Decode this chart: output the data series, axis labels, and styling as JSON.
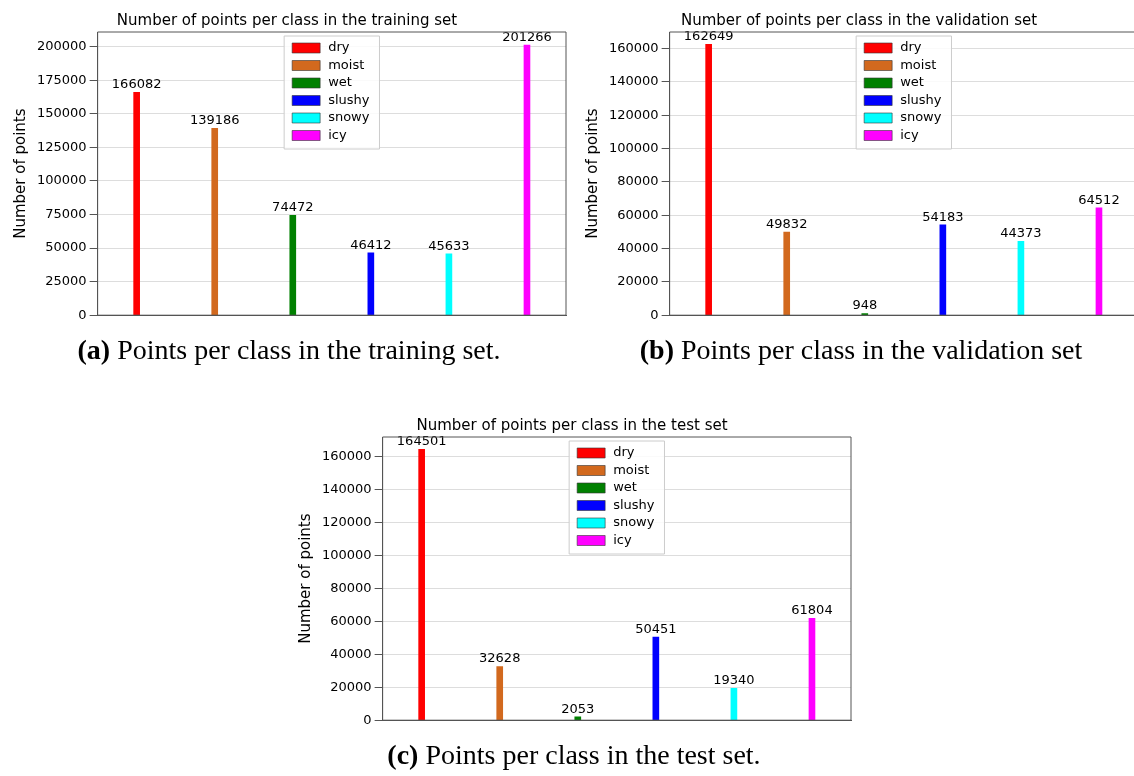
{
  "chart_data": [
    {
      "type": "bar",
      "title": "Number of points per class in the training set",
      "annotations": [
        "(a) Points per class in the training set."
      ],
      "ylabel": "Number of points",
      "categories": [
        null,
        null,
        null,
        null,
        null,
        null
      ],
      "series": [
        {
          "name": "dry",
          "color": "#ff0000",
          "values": [
            166082,
            null,
            null,
            null,
            null,
            null
          ]
        },
        {
          "name": "moist",
          "color": "#d2691e",
          "values": [
            null,
            139186,
            null,
            null,
            null,
            null
          ]
        },
        {
          "name": "wet",
          "color": "#008000",
          "values": [
            null,
            null,
            74472,
            null,
            null,
            null
          ]
        },
        {
          "name": "slushy",
          "color": "#0000ff",
          "values": [
            null,
            null,
            null,
            46412,
            null,
            null
          ]
        },
        {
          "name": "snowy",
          "color": "#00ffff",
          "values": [
            null,
            null,
            null,
            null,
            45633,
            null
          ]
        },
        {
          "name": "icy",
          "color": "#ff00ff",
          "values": [
            null,
            null,
            null,
            null,
            null,
            201266
          ]
        }
      ],
      "ylim": [
        0,
        211000
      ],
      "yticks": [
        0,
        25000,
        50000,
        75000,
        100000,
        125000,
        150000,
        175000,
        200000
      ],
      "grid": "y",
      "legend": "top",
      "data_labels": true,
      "tick_labels": "y"
    },
    {
      "type": "bar",
      "title": "Number of points per class in the validation set",
      "annotations": [
        "(b) Points per class in the validation set"
      ],
      "ylabel": "Number of points",
      "categories": [
        null,
        null,
        null,
        null,
        null,
        null
      ],
      "series": [
        {
          "name": "dry",
          "color": "#ff0000",
          "values": [
            162649,
            null,
            null,
            null,
            null,
            null
          ]
        },
        {
          "name": "moist",
          "color": "#d2691e",
          "values": [
            null,
            49832,
            null,
            null,
            null,
            null
          ]
        },
        {
          "name": "wet",
          "color": "#008000",
          "values": [
            null,
            null,
            948,
            null,
            null,
            null
          ]
        },
        {
          "name": "slushy",
          "color": "#0000ff",
          "values": [
            null,
            null,
            null,
            54183,
            null,
            null
          ]
        },
        {
          "name": "snowy",
          "color": "#00ffff",
          "values": [
            null,
            null,
            null,
            null,
            44373,
            null
          ]
        },
        {
          "name": "icy",
          "color": "#ff00ff",
          "values": [
            null,
            null,
            null,
            null,
            null,
            64512
          ]
        }
      ],
      "ylim": [
        0,
        170000
      ],
      "yticks": [
        0,
        20000,
        40000,
        60000,
        80000,
        100000,
        120000,
        140000,
        160000
      ],
      "grid": "y",
      "legend": "top",
      "data_labels": true,
      "tick_labels": "y"
    },
    {
      "type": "bar",
      "title": "Number of points per class in the test set",
      "annotations": [
        "(c) Points per class in the test set."
      ],
      "ylabel": "Number of points",
      "categories": [
        null,
        null,
        null,
        null,
        null,
        null
      ],
      "series": [
        {
          "name": "dry",
          "color": "#ff0000",
          "values": [
            164501,
            null,
            null,
            null,
            null,
            null
          ]
        },
        {
          "name": "moist",
          "color": "#d2691e",
          "values": [
            null,
            32628,
            null,
            null,
            null,
            null
          ]
        },
        {
          "name": "wet",
          "color": "#008000",
          "values": [
            null,
            null,
            2053,
            null,
            null,
            null
          ]
        },
        {
          "name": "slushy",
          "color": "#0000ff",
          "values": [
            null,
            null,
            null,
            50451,
            null,
            null
          ]
        },
        {
          "name": "snowy",
          "color": "#00ffff",
          "values": [
            null,
            null,
            null,
            null,
            19340,
            null
          ]
        },
        {
          "name": "icy",
          "color": "#ff00ff",
          "values": [
            null,
            null,
            null,
            null,
            null,
            61804
          ]
        }
      ],
      "ylim": [
        0,
        172000
      ],
      "yticks": [
        0,
        20000,
        40000,
        60000,
        80000,
        100000,
        120000,
        140000,
        160000
      ],
      "grid": "y",
      "legend": "top",
      "data_labels": true,
      "tick_labels": "y"
    }
  ]
}
